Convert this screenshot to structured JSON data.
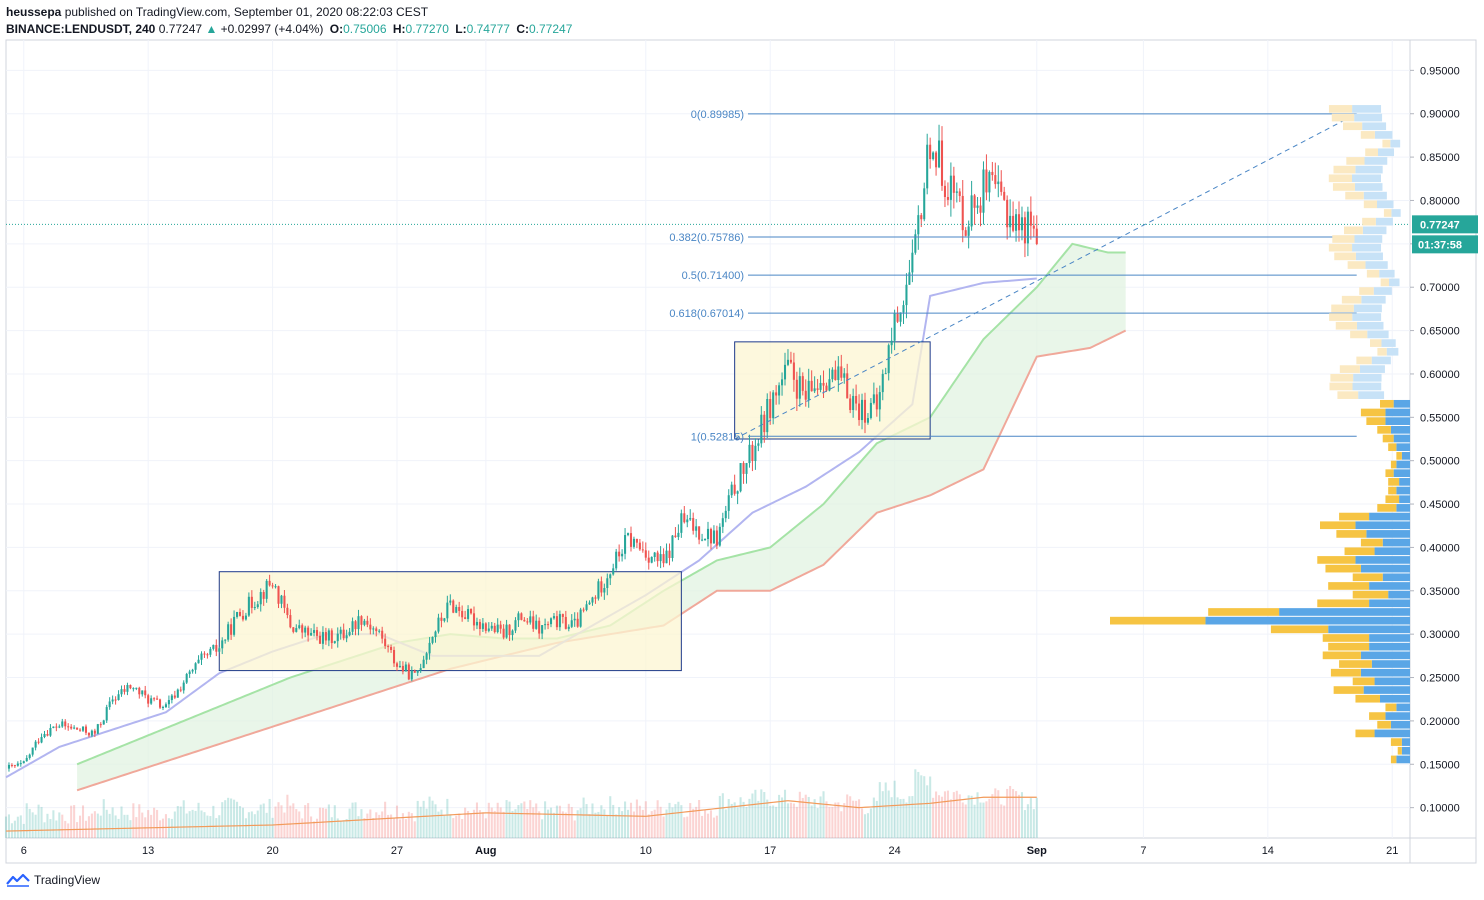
{
  "header": {
    "author": "heussepa",
    "published_text": "published on TradingView.com, September 01, 2020 08:22:03 CEST",
    "symbol": "BINANCE:LENDUSDT, 240",
    "last": "0.77247",
    "arrow": "▲",
    "change": "+0.02997 (+4.04%)",
    "open_label": "O:",
    "open": "0.75006",
    "high_label": "H:",
    "high": "0.77270",
    "low_label": "L:",
    "low": "0.74777",
    "close_label": "C:",
    "close": "0.77247"
  },
  "footer": {
    "brand": "TradingView",
    "icon": "tradingview-logo-icon"
  },
  "colors": {
    "up": "#26a69a",
    "down": "#ef5350",
    "fib": "#4a86c5",
    "baseline": "#b2b5f0",
    "cloud_fast": "#a5e3a6",
    "cloud_slow": "#f0a89a",
    "box_fill": "#fcf5d2",
    "box_stroke": "#1e3a8a",
    "vp_up": "#5aa6e6",
    "vp_down": "#f6c443",
    "ma": "#f29a5a"
  },
  "price_badge": {
    "value": "0.77247",
    "countdown": "01:37:58"
  },
  "chart_data": {
    "type": "candlestick",
    "title": "",
    "symbol": "BINANCE:LENDUSDT",
    "timeframe": "240",
    "x_ticks": [
      "6",
      "13",
      "20",
      "27",
      "Aug",
      "10",
      "17",
      "24",
      "Sep",
      "7",
      "14",
      "21"
    ],
    "y_ticks": [
      "0.10000",
      "0.15000",
      "0.20000",
      "0.25000",
      "0.30000",
      "0.35000",
      "0.40000",
      "0.45000",
      "0.50000",
      "0.55000",
      "0.60000",
      "0.65000",
      "0.70000",
      "0.75000",
      "0.80000",
      "0.85000",
      "0.90000",
      "0.95000"
    ],
    "ylim": [
      0.065,
      0.985
    ],
    "date_range": [
      "2020-07-05",
      "2020-09-22"
    ],
    "price_path": [
      [
        "2020-07-05",
        0.145
      ],
      [
        "2020-07-06",
        0.15
      ],
      [
        "2020-07-07",
        0.185
      ],
      [
        "2020-07-08",
        0.195
      ],
      [
        "2020-07-09",
        0.19
      ],
      [
        "2020-07-10",
        0.185
      ],
      [
        "2020-07-11",
        0.225
      ],
      [
        "2020-07-12",
        0.24
      ],
      [
        "2020-07-13",
        0.225
      ],
      [
        "2020-07-14",
        0.215
      ],
      [
        "2020-07-15",
        0.245
      ],
      [
        "2020-07-16",
        0.27
      ],
      [
        "2020-07-17",
        0.285
      ],
      [
        "2020-07-18",
        0.32
      ],
      [
        "2020-07-19",
        0.34
      ],
      [
        "2020-07-20",
        0.36
      ],
      [
        "2020-07-21",
        0.31
      ],
      [
        "2020-07-22",
        0.3
      ],
      [
        "2020-07-23",
        0.295
      ],
      [
        "2020-07-24",
        0.3
      ],
      [
        "2020-07-25",
        0.32
      ],
      [
        "2020-07-26",
        0.3
      ],
      [
        "2020-07-27",
        0.265
      ],
      [
        "2020-07-28",
        0.25
      ],
      [
        "2020-07-29",
        0.3
      ],
      [
        "2020-07-30",
        0.335
      ],
      [
        "2020-07-31",
        0.32
      ],
      [
        "2020-08-01",
        0.31
      ],
      [
        "2020-08-02",
        0.3
      ],
      [
        "2020-08-03",
        0.32
      ],
      [
        "2020-08-04",
        0.305
      ],
      [
        "2020-08-05",
        0.315
      ],
      [
        "2020-08-06",
        0.31
      ],
      [
        "2020-08-07",
        0.34
      ],
      [
        "2020-08-08",
        0.375
      ],
      [
        "2020-08-09",
        0.41
      ],
      [
        "2020-08-10",
        0.395
      ],
      [
        "2020-08-11",
        0.38
      ],
      [
        "2020-08-12",
        0.43
      ],
      [
        "2020-08-13",
        0.42
      ],
      [
        "2020-08-14",
        0.41
      ],
      [
        "2020-08-15",
        0.47
      ],
      [
        "2020-08-16",
        0.51
      ],
      [
        "2020-08-17",
        0.565
      ],
      [
        "2020-08-18",
        0.605
      ],
      [
        "2020-08-19",
        0.57
      ],
      [
        "2020-08-20",
        0.6
      ],
      [
        "2020-08-21",
        0.59
      ],
      [
        "2020-08-22",
        0.56
      ],
      [
        "2020-08-23",
        0.56
      ],
      [
        "2020-08-24",
        0.66
      ],
      [
        "2020-08-25",
        0.72
      ],
      [
        "2020-08-26",
        0.87
      ],
      [
        "2020-08-27",
        0.82
      ],
      [
        "2020-08-28",
        0.78
      ],
      [
        "2020-08-29",
        0.815
      ],
      [
        "2020-08-30",
        0.8
      ],
      [
        "2020-08-31",
        0.77
      ],
      [
        "2020-09-01",
        0.772
      ]
    ],
    "last_price": 0.77247,
    "fibonacci": {
      "levels": [
        {
          "label": "0(0.89985)",
          "value": 0.89985
        },
        {
          "label": "0.382(0.75786)",
          "value": 0.75786
        },
        {
          "label": "0.5(0.71400)",
          "value": 0.714
        },
        {
          "label": "0.618(0.67014)",
          "value": 0.67014
        },
        {
          "label": "1(0.52815)",
          "value": 0.52815
        }
      ],
      "start_date": "2020-08-16",
      "end_date": "2020-09-19"
    },
    "rectangles": [
      {
        "from": "2020-07-17",
        "to": "2020-08-12",
        "top": 0.372,
        "bottom": 0.258
      },
      {
        "from": "2020-08-15",
        "to": "2020-08-26",
        "top": 0.637,
        "bottom": 0.525
      }
    ],
    "trendline": {
      "from": [
        "2020-08-15",
        0.525
      ],
      "to": [
        "2020-09-19",
        0.9
      ]
    },
    "ichimoku": {
      "baseline": [
        [
          "2020-07-05",
          0.135
        ],
        [
          "2020-07-08",
          0.17
        ],
        [
          "2020-07-11",
          0.19
        ],
        [
          "2020-07-14",
          0.21
        ],
        [
          "2020-07-17",
          0.255
        ],
        [
          "2020-07-20",
          0.28
        ],
        [
          "2020-07-23",
          0.3
        ],
        [
          "2020-07-26",
          0.3
        ],
        [
          "2020-07-29",
          0.275
        ],
        [
          "2020-08-01",
          0.275
        ],
        [
          "2020-08-04",
          0.275
        ],
        [
          "2020-08-07",
          0.31
        ],
        [
          "2020-08-10",
          0.345
        ],
        [
          "2020-08-13",
          0.385
        ],
        [
          "2020-08-16",
          0.44
        ],
        [
          "2020-08-19",
          0.47
        ],
        [
          "2020-08-22",
          0.51
        ],
        [
          "2020-08-25",
          0.565
        ],
        [
          "2020-08-26",
          0.69
        ],
        [
          "2020-08-29",
          0.705
        ],
        [
          "2020-09-01",
          0.71
        ]
      ],
      "span_fast": [
        [
          "2020-07-09",
          0.15
        ],
        [
          "2020-07-12",
          0.175
        ],
        [
          "2020-07-15",
          0.2
        ],
        [
          "2020-07-18",
          0.225
        ],
        [
          "2020-07-21",
          0.25
        ],
        [
          "2020-07-24",
          0.27
        ],
        [
          "2020-07-27",
          0.29
        ],
        [
          "2020-07-30",
          0.3
        ],
        [
          "2020-08-02",
          0.295
        ],
        [
          "2020-08-05",
          0.295
        ],
        [
          "2020-08-08",
          0.31
        ],
        [
          "2020-08-11",
          0.35
        ],
        [
          "2020-08-14",
          0.385
        ],
        [
          "2020-08-17",
          0.4
        ],
        [
          "2020-08-20",
          0.45
        ],
        [
          "2020-08-23",
          0.52
        ],
        [
          "2020-08-26",
          0.55
        ],
        [
          "2020-08-29",
          0.64
        ],
        [
          "2020-09-01",
          0.7
        ],
        [
          "2020-09-03",
          0.75
        ],
        [
          "2020-09-05",
          0.74
        ],
        [
          "2020-09-06",
          0.74
        ]
      ],
      "span_slow": [
        [
          "2020-07-09",
          0.12
        ],
        [
          "2020-07-12",
          0.14
        ],
        [
          "2020-07-15",
          0.16
        ],
        [
          "2020-07-18",
          0.18
        ],
        [
          "2020-07-21",
          0.2
        ],
        [
          "2020-07-24",
          0.22
        ],
        [
          "2020-07-27",
          0.24
        ],
        [
          "2020-07-30",
          0.26
        ],
        [
          "2020-08-02",
          0.275
        ],
        [
          "2020-08-05",
          0.29
        ],
        [
          "2020-08-08",
          0.3
        ],
        [
          "2020-08-11",
          0.31
        ],
        [
          "2020-08-14",
          0.35
        ],
        [
          "2020-08-17",
          0.35
        ],
        [
          "2020-08-20",
          0.38
        ],
        [
          "2020-08-23",
          0.44
        ],
        [
          "2020-08-26",
          0.46
        ],
        [
          "2020-08-29",
          0.49
        ],
        [
          "2020-09-01",
          0.62
        ],
        [
          "2020-09-04",
          0.63
        ],
        [
          "2020-09-06",
          0.65
        ]
      ]
    },
    "volume_ma": [
      [
        "2020-07-05",
        0.073
      ],
      [
        "2020-07-20",
        0.08
      ],
      [
        "2020-08-01",
        0.094
      ],
      [
        "2020-08-10",
        0.09
      ],
      [
        "2020-08-18",
        0.108
      ],
      [
        "2020-08-22",
        0.1
      ],
      [
        "2020-08-26",
        0.105
      ],
      [
        "2020-08-29",
        0.112
      ],
      [
        "2020-09-01",
        0.112
      ]
    ],
    "volume_profile": {
      "price_levels": [
        0.155,
        0.165,
        0.175,
        0.185,
        0.195,
        0.205,
        0.215,
        0.225,
        0.235,
        0.245,
        0.255,
        0.265,
        0.275,
        0.285,
        0.295,
        0.305,
        0.315,
        0.325,
        0.335,
        0.345,
        0.355,
        0.365,
        0.375,
        0.385,
        0.395,
        0.405,
        0.415,
        0.425,
        0.435,
        0.445,
        0.455,
        0.465,
        0.475,
        0.485,
        0.495,
        0.505,
        0.515,
        0.525,
        0.535,
        0.545,
        0.555,
        0.565
      ],
      "up_volume": [
        4,
        3,
        8,
        14,
        10,
        12,
        8,
        18,
        22,
        16,
        22,
        24,
        28,
        30,
        34,
        42,
        70,
        52,
        38,
        26,
        30,
        22,
        26,
        28,
        22,
        16,
        22,
        26,
        22,
        14,
        10,
        6,
        8,
        6,
        4,
        4,
        6,
        8,
        10,
        14,
        18,
        10
      ],
      "down_volume": [
        10,
        6,
        6,
        26,
        14,
        18,
        10,
        22,
        34,
        26,
        36,
        28,
        36,
        30,
        30,
        60,
        150,
        96,
        30,
        16,
        30,
        20,
        36,
        40,
        26,
        20,
        32,
        40,
        30,
        10,
        8,
        10,
        8,
        12,
        10,
        6,
        10,
        12,
        14,
        18,
        18,
        12
      ]
    }
  }
}
